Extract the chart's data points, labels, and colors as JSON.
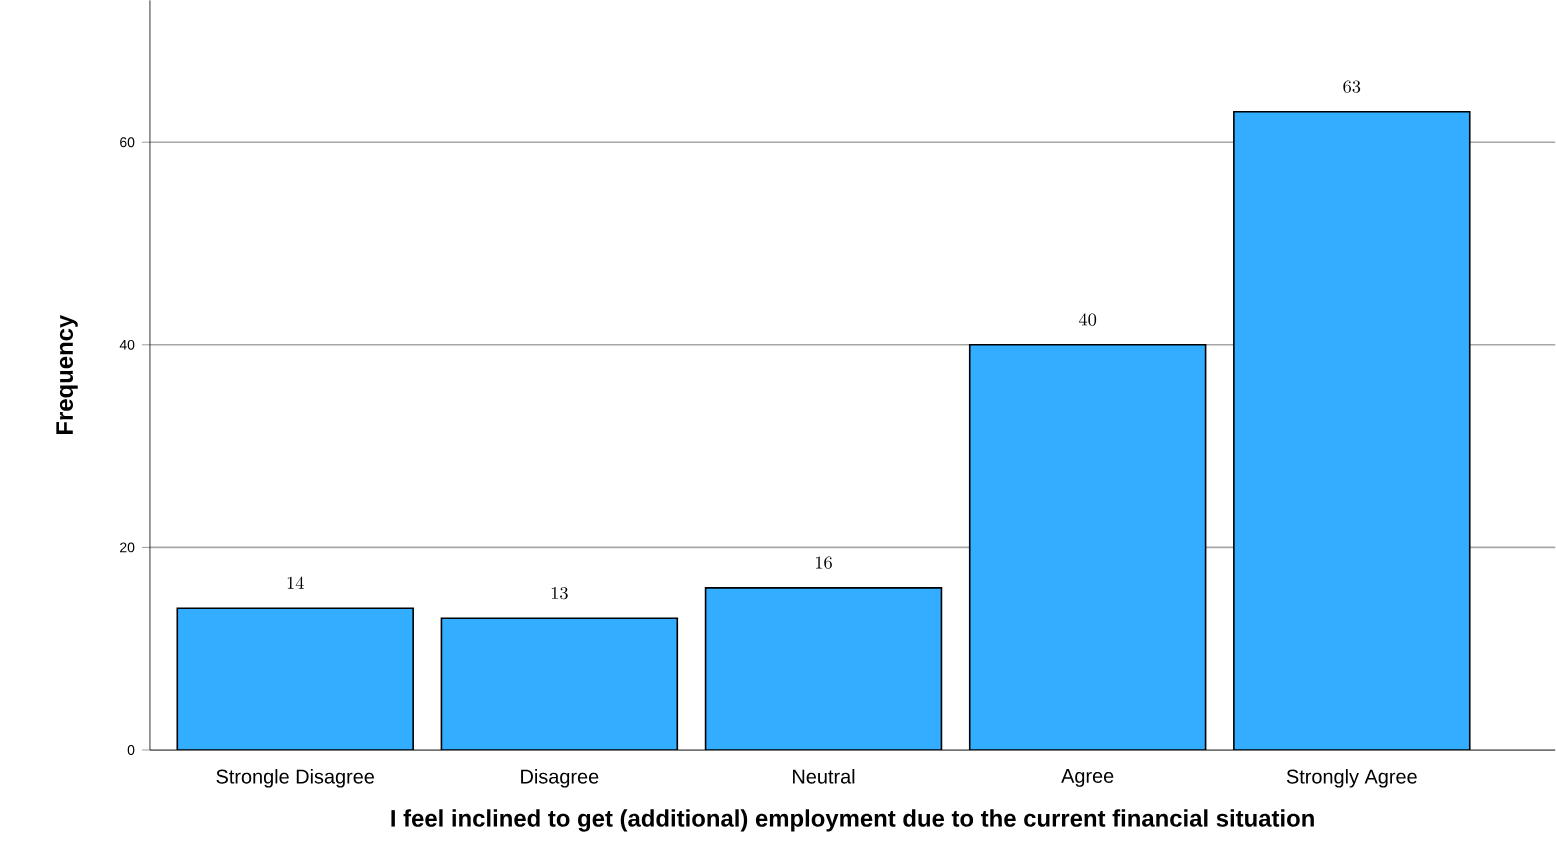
{
  "chart_data": {
    "type": "bar",
    "xlabel": "I feel inclined to get (additional) employment due to the current financial situation",
    "ylabel": "Frequency",
    "categories": [
      "Strongle Disagree",
      "Disagree",
      "Neutral",
      "Agree",
      "Strongly Agree"
    ],
    "values": [
      14,
      13,
      16,
      40,
      63
    ],
    "color": "#33adff",
    "ylim": [
      0,
      74
    ],
    "yticks": [
      0,
      20,
      40,
      60
    ],
    "grid": "y",
    "data_labels": true
  }
}
